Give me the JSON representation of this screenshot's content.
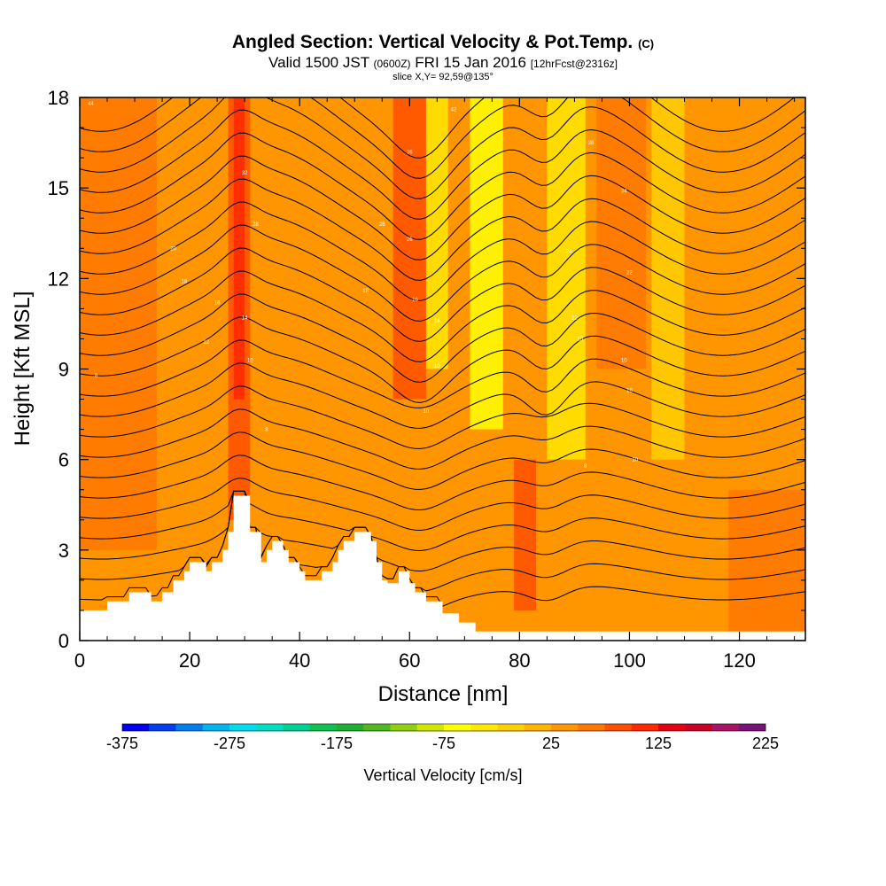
{
  "header": {
    "title": "Angled Section: Vertical Velocity & Pot.Temp.",
    "title_mark": "(C)",
    "valid_prefix": "Valid 1500 JST",
    "valid_utc": "(0600Z)",
    "valid_date": "FRI 15 Jan 2016",
    "forecast": "[12hrFcst@2316z]",
    "slice": "slice X,Y= 92,59@135°"
  },
  "chart_data": {
    "type": "heatmap",
    "title": "Angled Section: Vertical Velocity & Pot.Temp.",
    "xlabel": "Distance [nm]",
    "ylabel": "Height [Kft MSL]",
    "xlim": [
      0,
      132
    ],
    "ylim": [
      0,
      18
    ],
    "x_ticks": [
      0,
      20,
      40,
      60,
      80,
      100,
      120
    ],
    "y_ticks": [
      0,
      3,
      6,
      9,
      12,
      15,
      18
    ],
    "colorbar": {
      "label": "Vertical Velocity [cm/s]",
      "min": -375,
      "max": 225,
      "step": 25,
      "tick_labels": [
        -375,
        -275,
        -175,
        -75,
        25,
        125,
        225
      ],
      "colors": [
        "#0000f0",
        "#0040f0",
        "#0080f0",
        "#00b4f0",
        "#00dcf0",
        "#00e0c0",
        "#00d090",
        "#10c050",
        "#20b030",
        "#50b820",
        "#90d010",
        "#d0e800",
        "#ffff00",
        "#ffe800",
        "#ffd000",
        "#ffb400",
        "#ff9600",
        "#ff7800",
        "#ff5000",
        "#ff2800",
        "#e60014",
        "#c80028",
        "#aa1464",
        "#781478"
      ]
    },
    "terrain": [
      [
        0,
        1.0
      ],
      [
        5,
        1.0
      ],
      [
        5,
        1.3
      ],
      [
        9,
        1.3
      ],
      [
        9,
        1.6
      ],
      [
        13,
        1.6
      ],
      [
        13,
        1.3
      ],
      [
        15,
        1.3
      ],
      [
        15,
        1.6
      ],
      [
        17,
        1.6
      ],
      [
        17,
        2.0
      ],
      [
        19,
        2.0
      ],
      [
        19,
        2.3
      ],
      [
        20,
        2.3
      ],
      [
        20,
        2.6
      ],
      [
        23,
        2.6
      ],
      [
        23,
        2.3
      ],
      [
        24,
        2.3
      ],
      [
        24,
        2.6
      ],
      [
        26,
        2.6
      ],
      [
        26,
        3.0
      ],
      [
        27,
        3.0
      ],
      [
        27,
        3.6
      ],
      [
        28,
        3.6
      ],
      [
        28,
        4.8
      ],
      [
        31,
        4.8
      ],
      [
        31,
        3.6
      ],
      [
        33,
        3.6
      ],
      [
        33,
        2.6
      ],
      [
        34,
        2.6
      ],
      [
        34,
        3.0
      ],
      [
        35,
        3.0
      ],
      [
        35,
        3.3
      ],
      [
        37,
        3.3
      ],
      [
        37,
        3.0
      ],
      [
        38,
        3.0
      ],
      [
        38,
        2.6
      ],
      [
        40,
        2.6
      ],
      [
        40,
        2.3
      ],
      [
        41,
        2.3
      ],
      [
        41,
        2.0
      ],
      [
        44,
        2.0
      ],
      [
        44,
        2.3
      ],
      [
        46,
        2.3
      ],
      [
        46,
        2.6
      ],
      [
        47,
        2.6
      ],
      [
        47,
        3.0
      ],
      [
        48,
        3.0
      ],
      [
        48,
        3.3
      ],
      [
        50,
        3.3
      ],
      [
        50,
        3.6
      ],
      [
        53,
        3.6
      ],
      [
        53,
        3.3
      ],
      [
        54,
        3.3
      ],
      [
        54,
        2.6
      ],
      [
        55,
        2.6
      ],
      [
        55,
        2.0
      ],
      [
        56,
        2.0
      ],
      [
        56,
        1.9
      ],
      [
        58,
        1.9
      ],
      [
        58,
        2.3
      ],
      [
        60,
        2.3
      ],
      [
        60,
        1.9
      ],
      [
        61,
        1.9
      ],
      [
        61,
        1.6
      ],
      [
        63,
        1.6
      ],
      [
        63,
        1.3
      ],
      [
        66,
        1.3
      ],
      [
        66,
        0.9
      ],
      [
        69,
        0.9
      ],
      [
        69,
        0.6
      ],
      [
        72,
        0.6
      ],
      [
        72,
        0.3
      ],
      [
        132,
        0.3
      ]
    ],
    "velocity_field": [
      {
        "x_range": [
          0,
          132
        ],
        "y_range": [
          0,
          18
        ],
        "value": 40
      },
      {
        "x_range": [
          0,
          14
        ],
        "y_range": [
          3,
          18
        ],
        "value": 55
      },
      {
        "x_range": [
          27,
          31
        ],
        "y_range": [
          4,
          18
        ],
        "value": 95
      },
      {
        "x_range": [
          28,
          30
        ],
        "y_range": [
          8,
          18
        ],
        "value": 120
      },
      {
        "x_range": [
          57,
          63
        ],
        "y_range": [
          8,
          18
        ],
        "value": 80
      },
      {
        "x_range": [
          63,
          67
        ],
        "y_range": [
          9,
          18
        ],
        "value": -30
      },
      {
        "x_range": [
          71,
          77
        ],
        "y_range": [
          7,
          18
        ],
        "value": -60
      },
      {
        "x_range": [
          79,
          83
        ],
        "y_range": [
          1,
          6
        ],
        "value": 90
      },
      {
        "x_range": [
          85,
          92
        ],
        "y_range": [
          6,
          18
        ],
        "value": -40
      },
      {
        "x_range": [
          94,
          103
        ],
        "y_range": [
          9,
          18
        ],
        "value": 60
      },
      {
        "x_range": [
          104,
          110
        ],
        "y_range": [
          6,
          18
        ],
        "value": -20
      },
      {
        "x_range": [
          118,
          132
        ],
        "y_range": [
          0,
          5
        ],
        "value": 55
      }
    ],
    "theta_contours": {
      "levels": 24,
      "labels": [
        {
          "x": 2,
          "y": 17.8,
          "text": "44"
        },
        {
          "x": 68,
          "y": 17.6,
          "text": "42"
        },
        {
          "x": 60,
          "y": 16.2,
          "text": "36"
        },
        {
          "x": 93,
          "y": 16.5,
          "text": "38"
        },
        {
          "x": 30,
          "y": 15.5,
          "text": "32"
        },
        {
          "x": 99,
          "y": 14.9,
          "text": "34"
        },
        {
          "x": 32,
          "y": 13.8,
          "text": "28"
        },
        {
          "x": 55,
          "y": 13.8,
          "text": "28"
        },
        {
          "x": 60,
          "y": 13.3,
          "text": "26"
        },
        {
          "x": 17,
          "y": 13.0,
          "text": "20"
        },
        {
          "x": 89,
          "y": 12.9,
          "text": "24"
        },
        {
          "x": 100,
          "y": 12.2,
          "text": "22"
        },
        {
          "x": 19,
          "y": 11.9,
          "text": "18"
        },
        {
          "x": 52,
          "y": 11.6,
          "text": "18"
        },
        {
          "x": 61,
          "y": 11.3,
          "text": "16"
        },
        {
          "x": 25,
          "y": 11.2,
          "text": "16"
        },
        {
          "x": 30,
          "y": 10.7,
          "text": "14"
        },
        {
          "x": 65,
          "y": 10.6,
          "text": "14"
        },
        {
          "x": 90,
          "y": 10.7,
          "text": "12"
        },
        {
          "x": 23,
          "y": 9.9,
          "text": "12"
        },
        {
          "x": 91,
          "y": 10.0,
          "text": "10"
        },
        {
          "x": 31,
          "y": 9.3,
          "text": "10"
        },
        {
          "x": 99,
          "y": 9.3,
          "text": "10"
        },
        {
          "x": 65,
          "y": 9.1,
          "text": "10"
        },
        {
          "x": 3,
          "y": 8.8,
          "text": "8"
        },
        {
          "x": 100,
          "y": 8.3,
          "text": "10"
        },
        {
          "x": 63,
          "y": 7.6,
          "text": "10"
        },
        {
          "x": 34,
          "y": 7.0,
          "text": "8"
        },
        {
          "x": 92,
          "y": 5.8,
          "text": "8"
        },
        {
          "x": 101,
          "y": 6.0,
          "text": "10"
        }
      ]
    }
  }
}
